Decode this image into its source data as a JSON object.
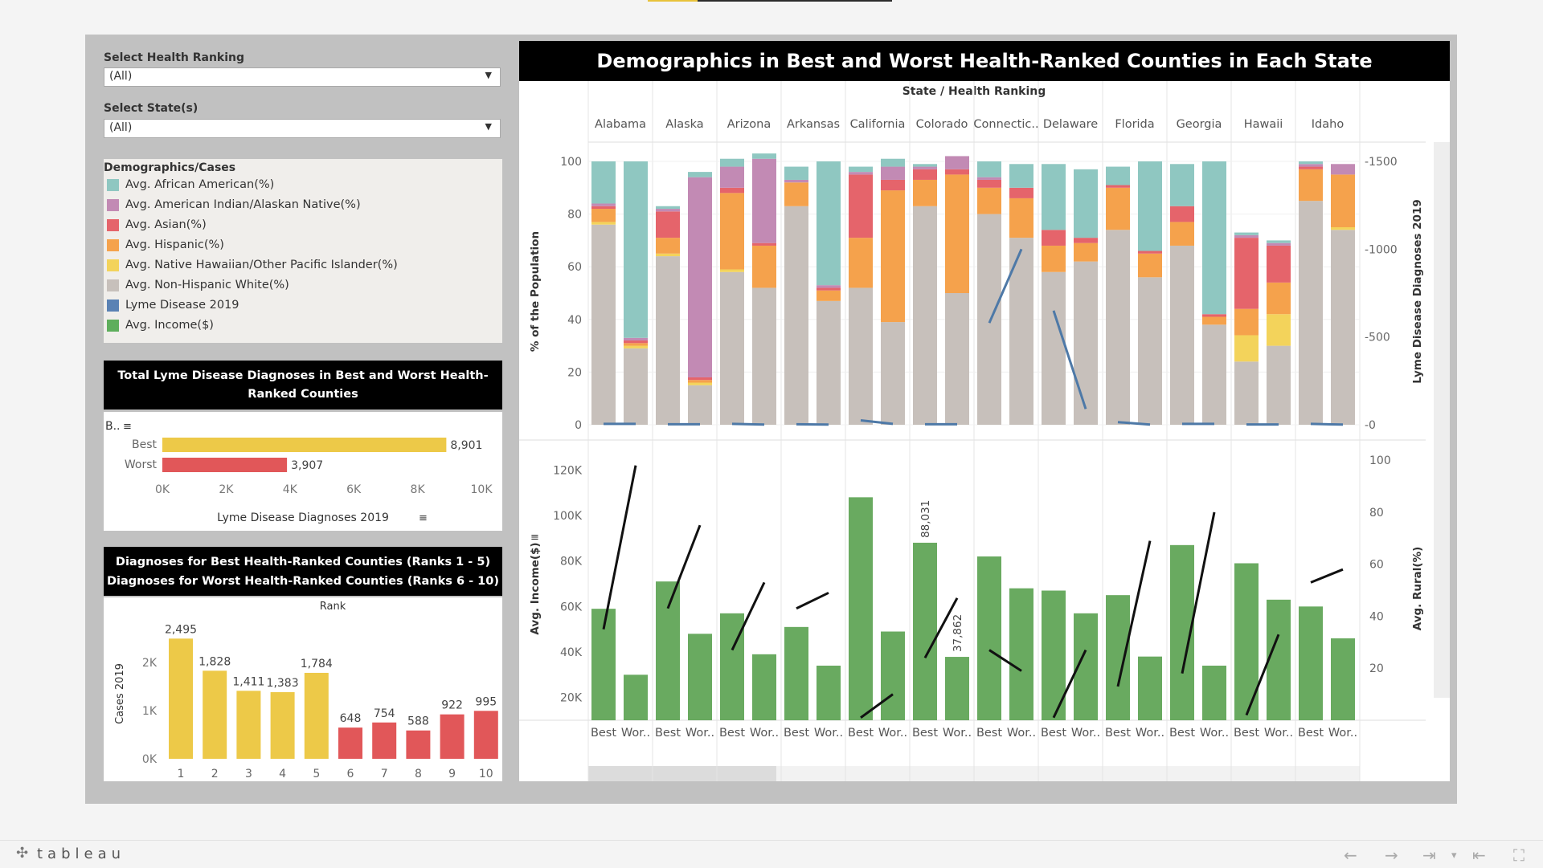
{
  "filters": {
    "health_ranking": {
      "label": "Select Health Ranking",
      "value": "(All)"
    },
    "states": {
      "label": "Select State(s)",
      "value": "(All)"
    }
  },
  "legend": {
    "title": "Demographics/Cases",
    "items": [
      {
        "label": "Avg. African American(%)",
        "color": "#8fc7c1"
      },
      {
        "label": "Avg. American Indian/Alaskan Native(%)",
        "color": "#c28ab4"
      },
      {
        "label": "Avg. Asian(%)",
        "color": "#e5646b"
      },
      {
        "label": "Avg. Hispanic(%)",
        "color": "#f5a24c"
      },
      {
        "label": "Avg. Native Hawaiian/Other Pacific Islander(%)",
        "color": "#f3d35b"
      },
      {
        "label": "Avg. Non-Hispanic White(%)",
        "color": "#c7c0bb"
      },
      {
        "label": "Lyme Disease 2019",
        "color": "#5a82b4"
      },
      {
        "label": "Avg. Income($)",
        "color": "#5eae5c"
      }
    ]
  },
  "totals_chart": {
    "title": "Total Lyme Disease Diagnoses in Best and Worst Health-Ranked Counties",
    "col_header": "B..",
    "xlabel": "Lyme Disease Diagnoses 2019",
    "ticks": [
      "0K",
      "2K",
      "4K",
      "6K",
      "8K",
      "10K"
    ],
    "bars": [
      {
        "label": "Best",
        "value": 8901,
        "value_label": "8,901",
        "color": "#edc948"
      },
      {
        "label": "Worst",
        "value": 3907,
        "value_label": "3,907",
        "color": "#e15759"
      }
    ]
  },
  "rank_chart": {
    "title_line1": "Diagnoses for Best Health-Ranked Counties (Ranks 1 - 5)",
    "title_line2": "Diagnoses for Worst Health-Ranked Counties (Ranks 6 - 10)",
    "header": "Rank",
    "ylabel": "Cases 2019",
    "yticks": [
      "2K",
      "1K",
      "0K"
    ],
    "ranks": [
      "1",
      "2",
      "3",
      "4",
      "5",
      "6",
      "7",
      "8",
      "9",
      "10"
    ],
    "values": [
      2495,
      1828,
      1411,
      1383,
      1784,
      648,
      754,
      588,
      922,
      995
    ],
    "value_labels": [
      "2,495",
      "1,828",
      "1,411",
      "1,383",
      "1,784",
      "648",
      "754",
      "588",
      "922",
      "995"
    ]
  },
  "main": {
    "title": "Demographics in Best and Worst Health-Ranked Counties in Each State",
    "header": "State / Health Ranking",
    "states": [
      "Alabama",
      "Alaska",
      "Arizona",
      "Arkansas",
      "California",
      "Colorado",
      "Connectic..",
      "Delaware",
      "Florida",
      "Georgia",
      "Hawaii",
      "Idaho"
    ],
    "sub_labels": [
      "Best",
      "Wor.."
    ],
    "top_ylabel": "% of the Population",
    "top_y2label": "Lyme Disease Diagnoses 2019",
    "top_yticks": [
      "100",
      "80",
      "60",
      "40",
      "20",
      "0"
    ],
    "top_y2ticks": [
      "1500",
      "1000",
      "500",
      "0"
    ],
    "bottom_ylabel": "Avg. Income($)",
    "bottom_y2label": "Avg. Rural(%)",
    "bottom_yticks": [
      "120K",
      "100K",
      "80K",
      "60K",
      "40K",
      "20K"
    ],
    "bottom_y2ticks": [
      "100",
      "80",
      "60",
      "40",
      "20"
    ],
    "income_labels": [
      "88,031",
      "37,862"
    ]
  },
  "chart_data": [
    {
      "type": "bar",
      "title": "Demographics in Best and Worst Health-Ranked Counties in Each State",
      "ylabel": "% of the Population",
      "ylim": [
        0,
        100
      ],
      "categories": [
        "Alabama Best",
        "Alabama Worst",
        "Alaska Best",
        "Alaska Worst",
        "Arizona Best",
        "Arizona Worst",
        "Arkansas Best",
        "Arkansas Worst",
        "California Best",
        "California Worst",
        "Colorado Best",
        "Colorado Worst",
        "Connecticut Best",
        "Connecticut Worst",
        "Delaware Best",
        "Delaware Worst",
        "Florida Best",
        "Florida Worst",
        "Georgia Best",
        "Georgia Worst",
        "Hawaii Best",
        "Hawaii Worst",
        "Idaho Best",
        "Idaho Worst"
      ],
      "series": [
        {
          "name": "Avg. Non-Hispanic White(%)",
          "values": [
            76,
            29,
            64,
            15,
            58,
            52,
            83,
            47,
            52,
            39,
            83,
            50,
            80,
            71,
            58,
            62,
            74,
            56,
            68,
            38,
            24,
            30,
            85,
            74
          ]
        },
        {
          "name": "Avg. Native Hawaiian/Other Pacific Islander(%)",
          "values": [
            1,
            1,
            1,
            1,
            1,
            0,
            0,
            0,
            0,
            0,
            0,
            0,
            0,
            0,
            0,
            0,
            0,
            0,
            0,
            0,
            10,
            12,
            0,
            1
          ]
        },
        {
          "name": "Avg. Hispanic(%)",
          "values": [
            5,
            1,
            6,
            1,
            29,
            16,
            9,
            4,
            19,
            50,
            10,
            45,
            10,
            15,
            10,
            7,
            16,
            9,
            9,
            3,
            10,
            12,
            12,
            20
          ]
        },
        {
          "name": "Avg. Asian(%)",
          "values": [
            1,
            1,
            10,
            1,
            2,
            1,
            0,
            1,
            24,
            4,
            4,
            2,
            3,
            4,
            6,
            2,
            1,
            1,
            6,
            1,
            27,
            14,
            1,
            0
          ]
        },
        {
          "name": "Avg. American Indian/Alaskan Native(%)",
          "values": [
            1,
            1,
            1,
            76,
            8,
            32,
            1,
            1,
            1,
            5,
            1,
            5,
            1,
            0,
            0,
            0,
            0,
            0,
            0,
            0,
            1,
            1,
            1,
            4
          ]
        },
        {
          "name": "Avg. African American(%)",
          "values": [
            16,
            67,
            1,
            2,
            3,
            2,
            5,
            47,
            2,
            3,
            1,
            0,
            6,
            9,
            25,
            26,
            7,
            34,
            16,
            58,
            1,
            1,
            1,
            0
          ]
        }
      ],
      "series2": {
        "name": "Lyme Disease 2019",
        "y2label": "Lyme Disease Diagnoses 2019",
        "y2lim": [
          0,
          1500
        ],
        "values": [
          5,
          5,
          3,
          3,
          5,
          1,
          3,
          1,
          25,
          5,
          3,
          3,
          580,
          1000,
          650,
          90,
          15,
          1,
          5,
          5,
          2,
          2,
          5,
          1
        ]
      }
    },
    {
      "type": "bar",
      "ylabel": "Avg. Income($)",
      "ylim": [
        10000,
        130000
      ],
      "categories": [
        "Alabama Best",
        "Alabama Worst",
        "Alaska Best",
        "Alaska Worst",
        "Arizona Best",
        "Arizona Worst",
        "Arkansas Best",
        "Arkansas Worst",
        "California Best",
        "California Worst",
        "Colorado Best",
        "Colorado Worst",
        "Connecticut Best",
        "Connecticut Worst",
        "Delaware Best",
        "Delaware Worst",
        "Florida Best",
        "Florida Worst",
        "Georgia Best",
        "Georgia Worst",
        "Hawaii Best",
        "Hawaii Worst",
        "Idaho Best",
        "Idaho Worst"
      ],
      "series": [
        {
          "name": "Avg. Income($)",
          "values": [
            59000,
            30000,
            71000,
            48000,
            57000,
            39000,
            51000,
            34000,
            108000,
            49000,
            88031,
            37862,
            82000,
            68000,
            67000,
            57000,
            65000,
            38000,
            87000,
            34000,
            79000,
            63000,
            60000,
            46000
          ]
        }
      ],
      "series2": {
        "name": "Avg. Rural(%)",
        "y2label": "Avg. Rural(%)",
        "y2lim": [
          0,
          105
        ],
        "values": [
          35,
          98,
          43,
          75,
          27,
          53,
          43,
          49,
          1,
          10,
          24,
          47,
          27,
          19,
          1,
          27,
          13,
          69,
          18,
          80,
          2,
          33,
          53,
          58
        ]
      }
    }
  ]
}
